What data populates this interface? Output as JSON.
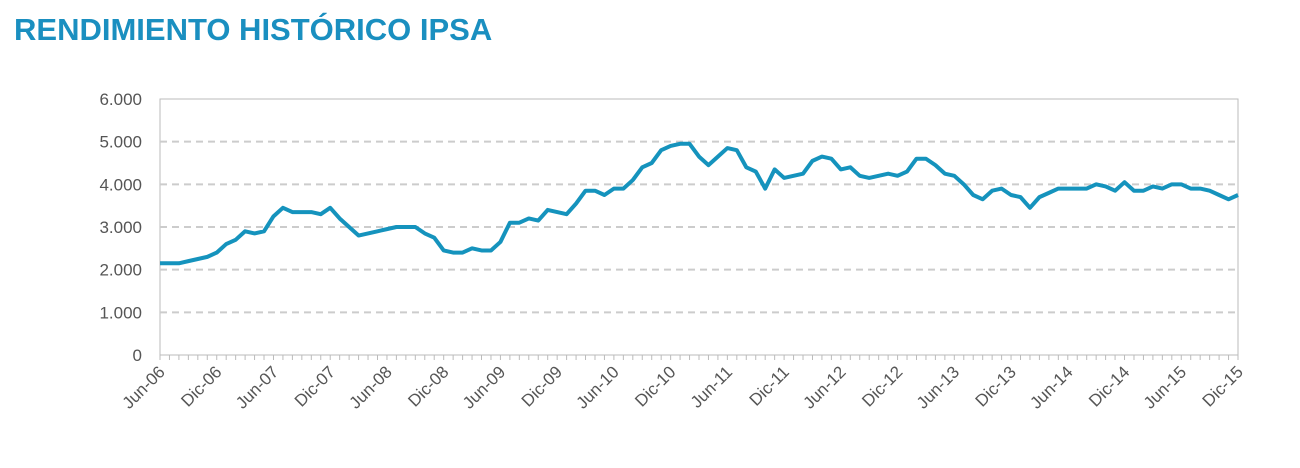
{
  "chart_data": {
    "type": "line",
    "title": "RENDIMIENTO HISTÓRICO IPSA",
    "color": "#1593bd",
    "grid": true,
    "categories": [
      "Jun-06",
      null,
      null,
      null,
      null,
      null,
      "Dic-06",
      null,
      null,
      null,
      null,
      null,
      "Jun-07",
      null,
      null,
      null,
      null,
      null,
      "Dic-07",
      null,
      null,
      null,
      null,
      null,
      "Jun-08",
      null,
      null,
      null,
      null,
      null,
      "Dic-08",
      null,
      null,
      null,
      null,
      null,
      "Jun-09",
      null,
      null,
      null,
      null,
      null,
      "Dic-09",
      null,
      null,
      null,
      null,
      null,
      "Jun-10",
      null,
      null,
      null,
      null,
      null,
      "Dic-10",
      null,
      null,
      null,
      null,
      null,
      "Jun-11",
      null,
      null,
      null,
      null,
      null,
      "Dic-11",
      null,
      null,
      null,
      null,
      null,
      "Jun-12",
      null,
      null,
      null,
      null,
      null,
      "Dic-12",
      null,
      null,
      null,
      null,
      null,
      "Jun-13",
      null,
      null,
      null,
      null,
      null,
      "Dic-13",
      null,
      null,
      null,
      null,
      null,
      "Jun-14",
      null,
      null,
      null,
      null,
      null,
      "Dic-14",
      null,
      null,
      null,
      null,
      null,
      "Jun-15",
      null,
      null,
      null,
      null,
      null,
      "Dic-15"
    ],
    "values": [
      2150,
      2150,
      2150,
      2200,
      2250,
      2300,
      2400,
      2600,
      2700,
      2900,
      2850,
      2900,
      3250,
      3450,
      3350,
      3350,
      3350,
      3300,
      3450,
      3200,
      3000,
      2800,
      2850,
      2900,
      2950,
      3000,
      3000,
      3000,
      2850,
      2750,
      2450,
      2400,
      2400,
      2500,
      2450,
      2450,
      2650,
      3100,
      3100,
      3200,
      3150,
      3400,
      3350,
      3300,
      3550,
      3850,
      3850,
      3750,
      3900,
      3900,
      4100,
      4400,
      4500,
      4800,
      4900,
      4950,
      4950,
      4650,
      4450,
      4650,
      4850,
      4800,
      4400,
      4300,
      3900,
      4350,
      4150,
      4200,
      4250,
      4550,
      4650,
      4600,
      4350,
      4400,
      4200,
      4150,
      4200,
      4250,
      4200,
      4300,
      4600,
      4600,
      4450,
      4250,
      4200,
      4000,
      3750,
      3650,
      3850,
      3900,
      3750,
      3700,
      3450,
      3700,
      3800,
      3900,
      3900,
      3900,
      3900,
      4000,
      3950,
      3850,
      4050,
      3850,
      3850,
      3950,
      3900,
      4000,
      4000,
      3900,
      3900,
      3850,
      3750,
      3650,
      3750
    ],
    "ylim": [
      0,
      6000
    ],
    "yticks": [
      0,
      {
        "value": 1000,
        "label": "1.000"
      },
      {
        "value": 2000,
        "label": "2.000"
      },
      {
        "value": 3000,
        "label": "3.000"
      },
      {
        "value": 4000,
        "label": "4.000"
      },
      {
        "value": 5000,
        "label": "5.000"
      },
      {
        "value": 6000,
        "label": "6.000"
      }
    ]
  }
}
